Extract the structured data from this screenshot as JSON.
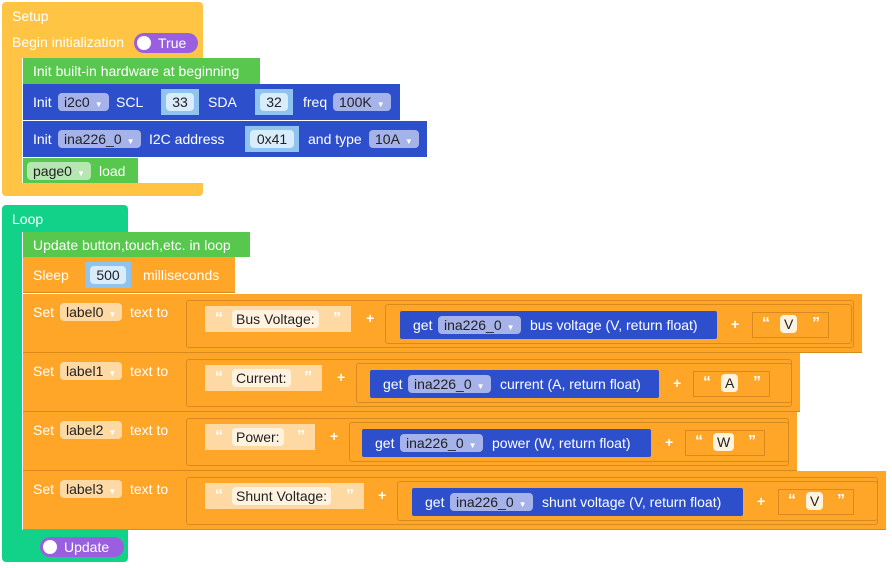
{
  "setup": {
    "title": "Setup",
    "begin_label": "Begin initialization",
    "begin_toggle": "True",
    "hw_label": "Init built-in hardware at beginning",
    "i2c": {
      "init": "Init",
      "bus": "i2c0",
      "scl_label": "SCL",
      "scl": "33",
      "sda_label": "SDA",
      "sda": "32",
      "freq_label": "freq",
      "freq": "100K"
    },
    "ina": {
      "init": "Init",
      "device": "ina226_0",
      "addr_label": "I2C address",
      "addr": "0x41",
      "type_label": "and type",
      "type": "10A"
    },
    "page": {
      "page": "page0",
      "load": "load"
    }
  },
  "loop": {
    "title": "Loop",
    "update_label": "Update button,touch,etc. in loop",
    "sleep": {
      "label": "Sleep",
      "value": "500",
      "unit": "milliseconds"
    },
    "set_label": "Set",
    "text_to": "text to",
    "get": "get",
    "plus": "+",
    "rows": [
      {
        "label": "label0",
        "text": "Bus Voltage:",
        "device": "ina226_0",
        "reading": "bus voltage (V, return float)",
        "suffix": "V"
      },
      {
        "label": "label1",
        "text": "Current:",
        "device": "ina226_0",
        "reading": "current (A, return float)",
        "suffix": "A"
      },
      {
        "label": "label2",
        "text": "Power:",
        "device": "ina226_0",
        "reading": "power (W, return float)",
        "suffix": "W"
      },
      {
        "label": "label3",
        "text": "Shunt Voltage:",
        "device": "ina226_0",
        "reading": "shunt voltage (V, return float)",
        "suffix": "V"
      }
    ],
    "update_toggle": "Update"
  },
  "colors": {
    "setup": "#ffc444",
    "loop": "#12d28a",
    "green": "#57c84d",
    "blue": "#2d4fcb",
    "orange": "#ffa629",
    "toggle": "#9a5fe0"
  }
}
